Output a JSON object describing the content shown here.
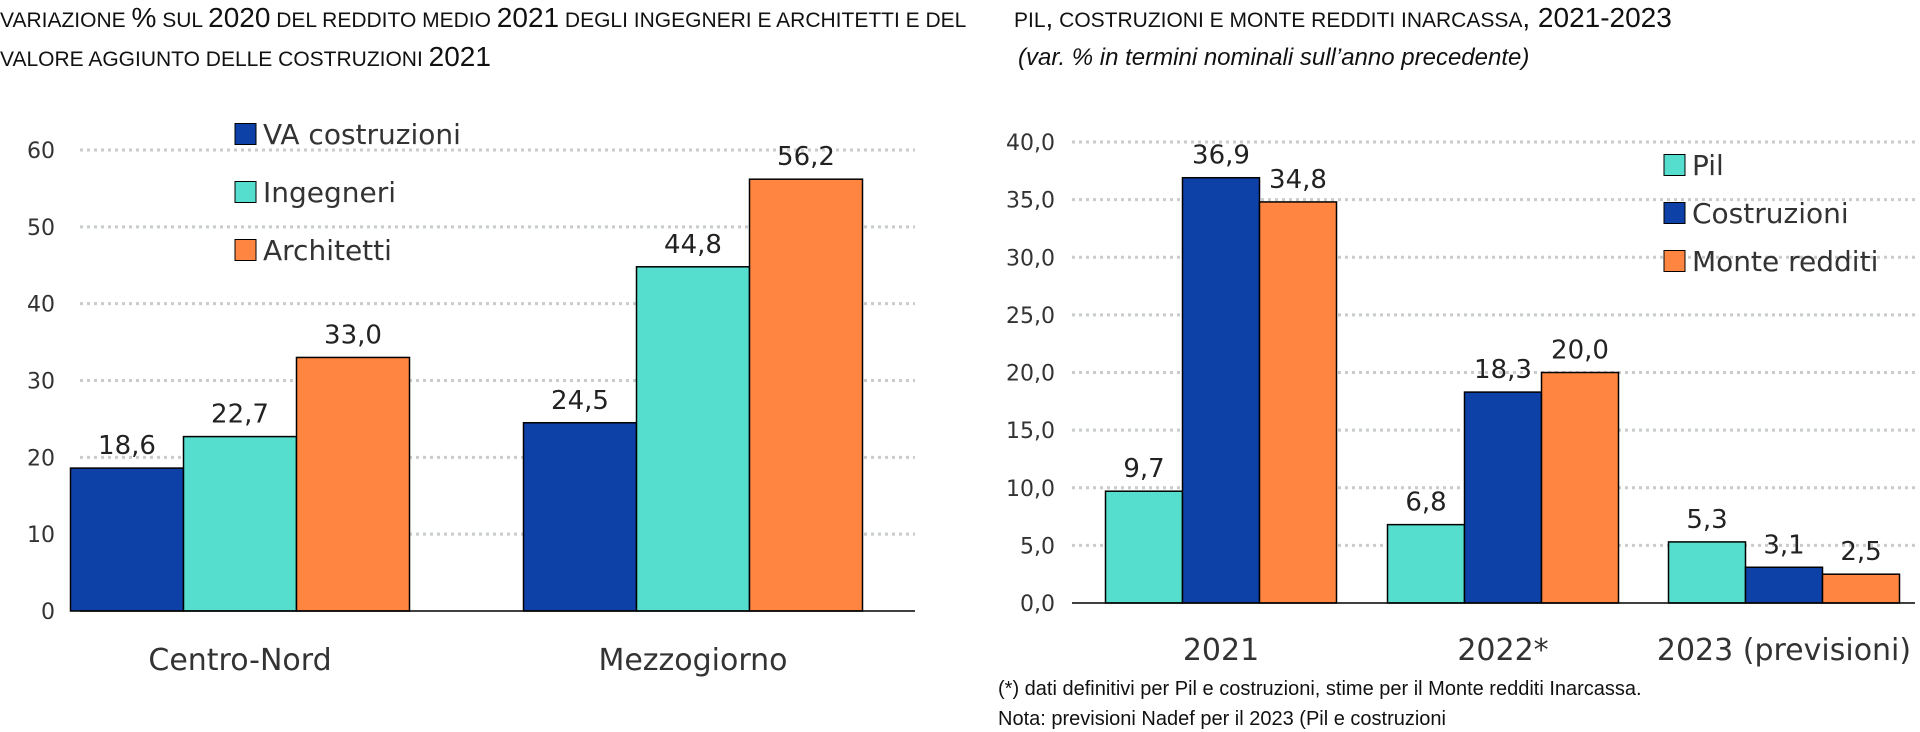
{
  "left_title": {
    "parts": [
      {
        "text": "VARIAZIONE ",
        "big": false
      },
      {
        "text": "%",
        "big": true
      },
      {
        "text": " SUL ",
        "big": false
      },
      {
        "text": "2020",
        "big": true
      },
      {
        "text": " DEL REDDITO MEDIO ",
        "big": false
      },
      {
        "text": "2021",
        "big": true
      },
      {
        "text": " DEGLI INGEGNERI E ARCHITETTI E DEL VALORE AGGIUNTO DELLE COSTRUZIONI ",
        "big": false
      },
      {
        "text": "2021",
        "big": true
      }
    ]
  },
  "right_title": {
    "parts": [
      {
        "text": "PIL",
        "big": false
      },
      {
        "text": ",",
        "big": true
      },
      {
        "text": " COSTRUZIONI E MONTE REDDITI INARCASSA",
        "big": false
      },
      {
        "text": ", 2021-2023",
        "big": true
      }
    ],
    "subtitle": "(var. % in termini nominali sull’anno precedente)"
  },
  "notes": {
    "line1": "(*) dati definitivi per Pil e costruzioni, stime per il Monte redditi Inarcassa.",
    "line2": "Nota: previsioni Nadef per il 2023 (Pil e costruzioni"
  },
  "colors": {
    "dark_blue": "#0E41A8",
    "turquoise": "#55DECE",
    "orange": "#FF8541",
    "grid": "#C8CCCC"
  },
  "chart_data": [
    {
      "type": "bar",
      "categories": [
        "Centro-Nord",
        "Mezzogiorno"
      ],
      "series": [
        {
          "name": "VA costruzioni",
          "color": "#0E41A8",
          "values": [
            18.6,
            24.5
          ],
          "labels": [
            "18,6",
            "24,5"
          ]
        },
        {
          "name": "Ingegneri",
          "color": "#55DECE",
          "values": [
            22.7,
            44.8
          ],
          "labels": [
            "22,7",
            "44,8"
          ]
        },
        {
          "name": "Architetti",
          "color": "#FF8541",
          "values": [
            33.0,
            56.2
          ],
          "labels": [
            "33,0",
            "56,2"
          ]
        }
      ],
      "ylim": [
        0,
        60
      ],
      "yticks": [
        0,
        10,
        20,
        30,
        40,
        50,
        60
      ],
      "ytick_labels": [
        "0",
        "10",
        "20",
        "30",
        "40",
        "50",
        "60"
      ],
      "grid": true,
      "legend_position": "top-left"
    },
    {
      "type": "bar",
      "categories": [
        "2021",
        "2022*",
        "2023 (previsioni)"
      ],
      "series": [
        {
          "name": "Pil",
          "color": "#55DECE",
          "values": [
            9.7,
            6.8,
            5.3
          ],
          "labels": [
            "9,7",
            "6,8",
            "5,3"
          ]
        },
        {
          "name": "Costruzioni",
          "color": "#0E41A8",
          "values": [
            36.9,
            18.3,
            3.1
          ],
          "labels": [
            "36,9",
            "18,3",
            "3,1"
          ]
        },
        {
          "name": "Monte redditi",
          "color": "#FF8541",
          "values": [
            34.8,
            20.0,
            2.5
          ],
          "labels": [
            "34,8",
            "20,0",
            "2,5"
          ]
        }
      ],
      "ylim": [
        0,
        40
      ],
      "yticks": [
        0,
        5,
        10,
        15,
        20,
        25,
        30,
        35,
        40
      ],
      "ytick_labels": [
        "0,0",
        "5,0",
        "10,0",
        "15,0",
        "20,0",
        "25,0",
        "30,0",
        "35,0",
        "40,0"
      ],
      "grid": true,
      "legend_position": "top-right"
    }
  ]
}
